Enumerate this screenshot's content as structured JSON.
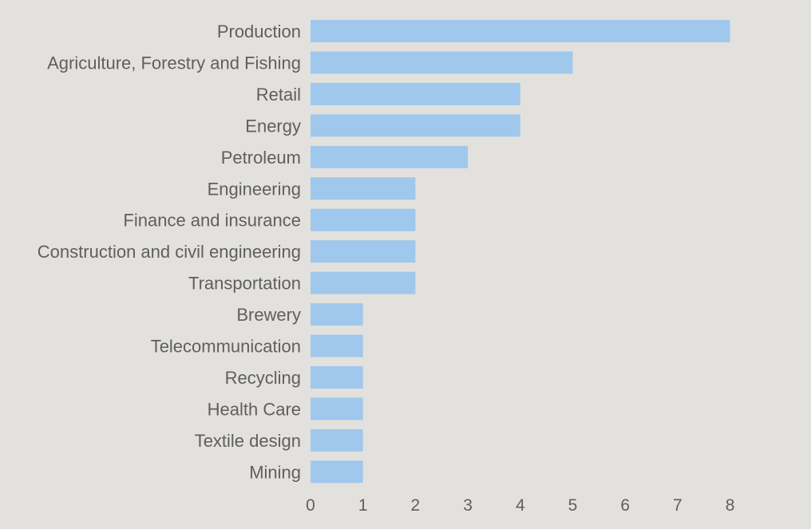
{
  "chart_data": {
    "type": "bar",
    "orientation": "horizontal",
    "categories": [
      "Production",
      "Agriculture, Forestry and Fishing",
      "Retail",
      "Energy",
      "Petroleum",
      "Engineering",
      "Finance and insurance",
      "Construction and civil engineering",
      "Transportation",
      "Brewery",
      "Telecommunication",
      "Recycling",
      "Health Care",
      "Textile design",
      "Mining"
    ],
    "values": [
      8,
      5,
      4,
      4,
      3,
      2,
      2,
      2,
      2,
      1,
      1,
      1,
      1,
      1,
      1
    ],
    "xticks": [
      0,
      1,
      2,
      3,
      4,
      5,
      6,
      7,
      8
    ],
    "xlim": [
      0,
      8
    ],
    "grid": false,
    "legend": "none",
    "colors": {
      "bar": "#9fc8ec",
      "background": "#e3e1dd",
      "text": "#5f5f5f"
    }
  }
}
